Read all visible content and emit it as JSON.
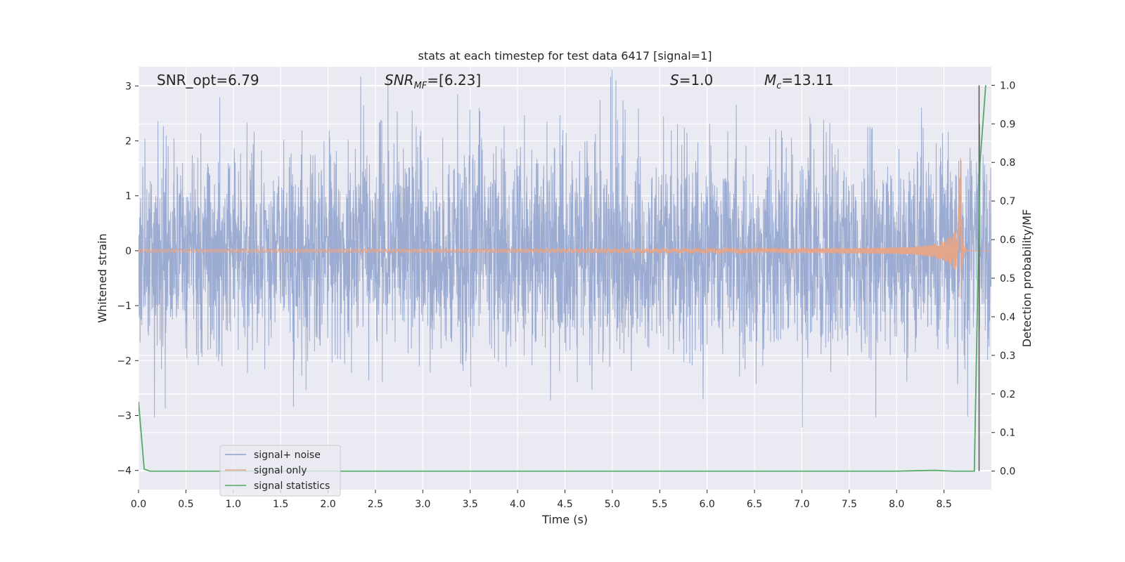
{
  "chart_data": {
    "type": "line",
    "title": "stats at each timestep for test data 6417 [signal=1]",
    "xlabel": "Time (s)",
    "ylabel": "Whitened strain",
    "y2label": "Detection probability/MF",
    "xlim": [
      0.0,
      9.0
    ],
    "ylim": [
      -4.35,
      3.35
    ],
    "y2lim": [
      -0.048,
      1.048
    ],
    "x_ticks": [
      0.0,
      0.5,
      1.0,
      1.5,
      2.0,
      2.5,
      3.0,
      3.5,
      4.0,
      4.5,
      5.0,
      5.5,
      6.0,
      6.5,
      7.0,
      7.5,
      8.0,
      8.5
    ],
    "x_tick_labels": [
      "0.0",
      "0.5",
      "1.0",
      "1.5",
      "2.0",
      "2.5",
      "3.0",
      "3.5",
      "4.0",
      "4.5",
      "5.0",
      "5.5",
      "6.0",
      "6.5",
      "7.0",
      "7.5",
      "8.0",
      "8.5"
    ],
    "y_ticks": [
      -4,
      -3,
      -2,
      -1,
      0,
      1,
      2,
      3
    ],
    "y_tick_labels": [
      "−4",
      "−3",
      "−2",
      "−1",
      "0",
      "1",
      "2",
      "3"
    ],
    "y2_ticks": [
      0.0,
      0.1,
      0.2,
      0.3,
      0.4,
      0.5,
      0.6,
      0.7,
      0.8,
      0.9,
      1.0
    ],
    "y2_tick_labels": [
      "0.0",
      "0.1",
      "0.2",
      "0.3",
      "0.4",
      "0.5",
      "0.6",
      "0.7",
      "0.8",
      "0.9",
      "1.0"
    ],
    "grid": true,
    "legend_position": "bottom-left",
    "series": [
      {
        "name": "signal+ noise",
        "color": "#8da0cb",
        "description_values": "dense noise, whitened strain roughly between -4 and 3.3 over 0–9 s"
      },
      {
        "name": "signal only",
        "color": "#e5a58a",
        "chirp_peak_time": 8.68,
        "chirp_peak_amplitude_max": 1.32,
        "chirp_peak_amplitude_min": -0.92
      },
      {
        "name": "signal statistics",
        "color": "#55a868",
        "axis": "right",
        "x": [
          0.0,
          0.06,
          0.12,
          0.5,
          1.0,
          2.0,
          3.0,
          4.0,
          5.0,
          6.0,
          7.0,
          8.0,
          8.4,
          8.5,
          8.6,
          8.82,
          8.88,
          8.94
        ],
        "y": [
          0.18,
          0.005,
          0.0,
          0.0,
          0.0,
          0.0,
          0.0,
          0.0,
          0.0,
          0.0,
          0.0,
          0.0,
          0.002,
          0.001,
          0.0,
          0.0,
          0.8,
          1.0
        ]
      }
    ],
    "marker_line": {
      "x": 8.87,
      "color": "#555555"
    },
    "annotations": {
      "snr_opt": "SNR_opt=6.79",
      "snr_mf_main": "SNR",
      "snr_mf_sub": "MF",
      "snr_mf_rest": "=[6.23]",
      "s_main": "S",
      "s_rest": "=1.0",
      "mc_main": "M",
      "mc_sub": "c",
      "mc_rest": "=13.11"
    }
  }
}
